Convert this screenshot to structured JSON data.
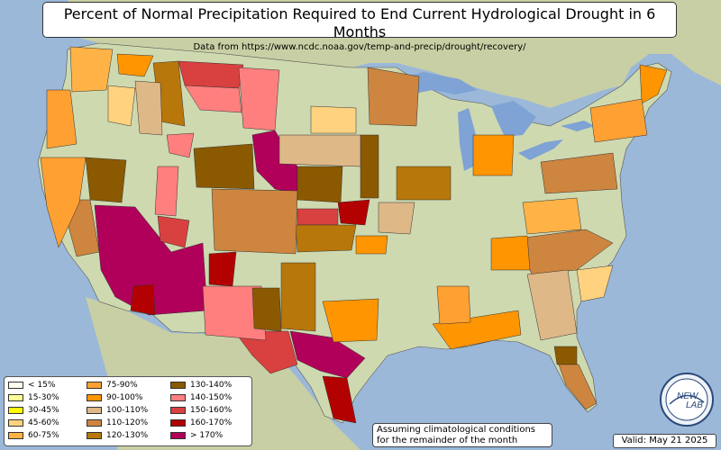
{
  "title": "Percent of Normal Precipitation Required to End Current Hydrological Drought in 6 Months",
  "subtitle": "Data from https://www.ncdc.noaa.gov/temp-and-precip/drought/recovery/",
  "note": [
    "Assuming climatological conditions",
    "for the remainder of the month"
  ],
  "valid": "Valid: May 21 2025",
  "logo_text": [
    "NEW",
    "LAB"
  ],
  "colors": {
    "ocean": "#9bb8d9",
    "land": "#cfd9b0",
    "mexico_canada": "#c9cfa4",
    "lakes": "#7ea3d4"
  },
  "legend": [
    {
      "label": "< 15%",
      "color": "#fffff0"
    },
    {
      "label": "15-30%",
      "color": "#ffff99"
    },
    {
      "label": "30-45%",
      "color": "#ffff00"
    },
    {
      "label": "45-60%",
      "color": "#ffd27f"
    },
    {
      "label": "60-75%",
      "color": "#ffb347"
    },
    {
      "label": "75-90%",
      "color": "#ffa033"
    },
    {
      "label": "90-100%",
      "color": "#ff9500"
    },
    {
      "label": "100-110%",
      "color": "#deb887"
    },
    {
      "label": "110-120%",
      "color": "#cd853f"
    },
    {
      "label": "120-130%",
      "color": "#b8770b"
    },
    {
      "label": "130-140%",
      "color": "#8b5a00"
    },
    {
      "label": "140-150%",
      "color": "#ff7f7f"
    },
    {
      "label": "150-160%",
      "color": "#d94040"
    },
    {
      "label": "160-170%",
      "color": "#b30000"
    },
    {
      "label": "> 170%",
      "color": "#b0005a"
    }
  ]
}
